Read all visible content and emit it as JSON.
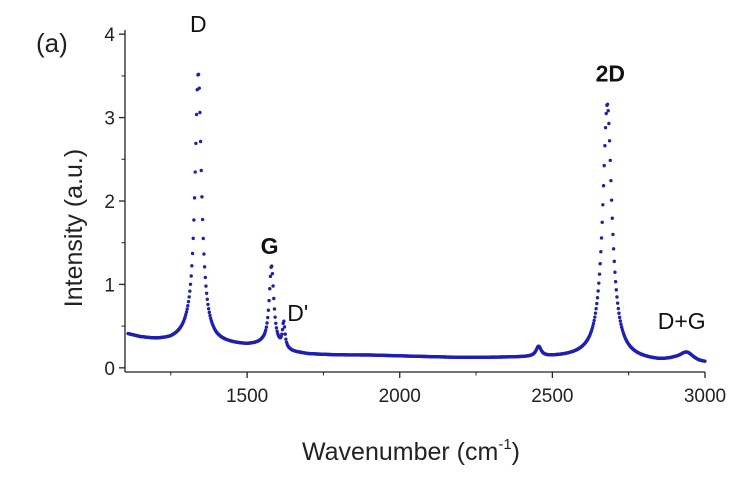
{
  "chart_data": {
    "type": "scatter",
    "panel_label": "(a)",
    "title": "",
    "xlabel": "Wavenumber (cm",
    "xlabel_sup": "-1",
    "xlabel_tail": ")",
    "ylabel": "Intensity (a.u.)",
    "xlim": [
      1100,
      3000
    ],
    "ylim": [
      -0.05,
      4.05
    ],
    "xticks": [
      1500,
      2000,
      2500,
      3000
    ],
    "yticks": [
      0,
      1,
      2,
      3,
      4
    ],
    "grid": false,
    "legend": "none",
    "series_color": "#1f1fb4",
    "peaks": [
      {
        "label": "D",
        "x": 1340,
        "y": 3.5,
        "bold": false
      },
      {
        "label": "G",
        "x": 1580,
        "y": 1.22,
        "bold": true
      },
      {
        "label": "D'",
        "x": 1620,
        "y": 0.48,
        "bold": false
      },
      {
        "label": "2D",
        "x": 2680,
        "y": 3.17,
        "bold": true
      },
      {
        "label": "D+G",
        "x": 2940,
        "y": 0.18,
        "bold": false
      }
    ],
    "baseline": [
      [
        1100,
        0.41
      ],
      [
        1150,
        0.36
      ],
      [
        1200,
        0.33
      ],
      [
        1250,
        0.32
      ],
      [
        1300,
        0.34
      ],
      [
        1400,
        0.28
      ],
      [
        1500,
        0.26
      ],
      [
        1550,
        0.27
      ],
      [
        1650,
        0.18
      ],
      [
        1700,
        0.16
      ],
      [
        1800,
        0.15
      ],
      [
        1900,
        0.15
      ],
      [
        2000,
        0.14
      ],
      [
        2100,
        0.13
      ],
      [
        2200,
        0.12
      ],
      [
        2300,
        0.12
      ],
      [
        2400,
        0.12
      ],
      [
        2500,
        0.12
      ],
      [
        2600,
        0.12
      ],
      [
        2750,
        0.09
      ],
      [
        2850,
        0.07
      ],
      [
        2900,
        0.08
      ],
      [
        2980,
        0.05
      ],
      [
        3000,
        0.05
      ]
    ],
    "bands": [
      {
        "center": 1340,
        "height": 3.22,
        "width": 13
      },
      {
        "center": 1580,
        "height": 0.97,
        "width": 9
      },
      {
        "center": 1620,
        "height": 0.3,
        "width": 5
      },
      {
        "center": 2455,
        "height": 0.12,
        "width": 10
      },
      {
        "center": 2680,
        "height": 3.06,
        "width": 18
      },
      {
        "center": 2940,
        "height": 0.11,
        "width": 28
      }
    ]
  }
}
